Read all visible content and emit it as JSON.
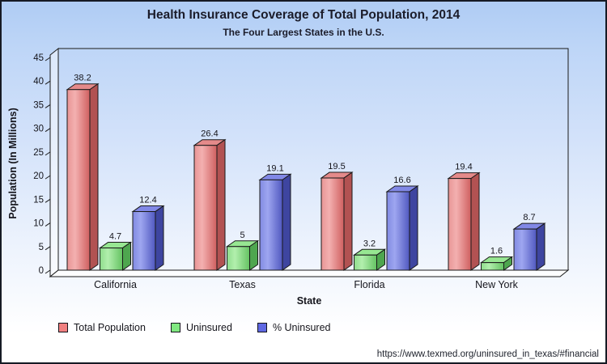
{
  "header": {
    "title": "Health Insurance Coverage of Total Population, 2014",
    "subtitle": "The Four Largest States in the U.S."
  },
  "footer": {
    "source_url": "https://www.texmed.org/uninsured_in_texas/#financial"
  },
  "chart_data": {
    "type": "bar",
    "style": "3d-column",
    "title": "Health Insurance Coverage of Total Population, 2014",
    "subtitle": "The Four Largest States in the U.S.",
    "categories": [
      "California",
      "Texas",
      "Florida",
      "New York"
    ],
    "series": [
      {
        "name": "Total Population",
        "values": [
          38.2,
          26.4,
          19.5,
          19.4
        ],
        "colors": {
          "front_stops": [
            "#e89595",
            "#f3b0b0",
            "#cf5f5f"
          ],
          "top": "#e48a8a",
          "side": "#b25252",
          "legend": "#f08080"
        }
      },
      {
        "name": "Uninsured",
        "values": [
          4.7,
          5,
          3.2,
          1.6
        ],
        "colors": {
          "front_stops": [
            "#8fdc8c",
            "#b2efad",
            "#64c262"
          ],
          "top": "#97e792",
          "side": "#4ea64f",
          "legend": "#80e880"
        }
      },
      {
        "name": "% Uninsured",
        "values": [
          12.4,
          19.1,
          16.6,
          8.7
        ],
        "colors": {
          "front_stops": [
            "#818ae2",
            "#9ea6f0",
            "#5058c0"
          ],
          "top": "#8188e6",
          "side": "#3e45a0",
          "legend": "#5f68e2"
        }
      }
    ],
    "xlabel": "State",
    "ylabel": "Population (In Millions)",
    "ylim": [
      0,
      45
    ],
    "ytick_step": 5,
    "grid": false,
    "value_labels": true,
    "legend_position": "bottom"
  }
}
